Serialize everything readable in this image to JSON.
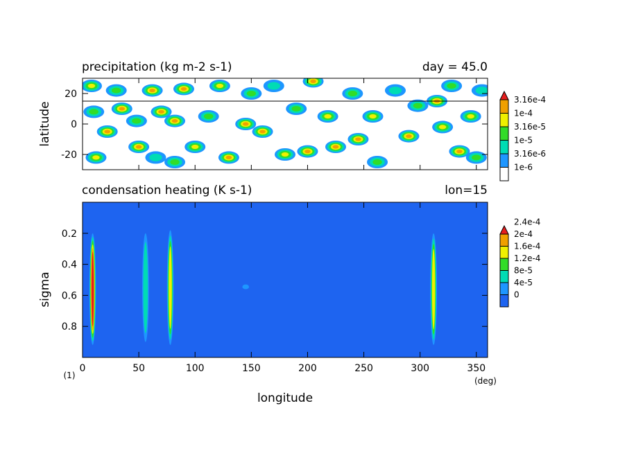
{
  "chart_data": [
    {
      "type": "heatmap",
      "title": "precipitation (kg m-2 s-1)",
      "annotation": "day = 45.0",
      "ylabel": "latitude",
      "xlim": [
        0,
        360
      ],
      "ylim": [
        -30,
        30
      ],
      "yticks": [
        "20",
        "0",
        "-20"
      ],
      "colorbar": {
        "labels": [
          "1e-6",
          "3.16e-6",
          "1e-5",
          "3.16e-5",
          "1e-4",
          "3.16e-4"
        ],
        "colors": [
          "#ffffff",
          "#1e96ff",
          "#00dcb4",
          "#32dc28",
          "#f0f000",
          "#f0a000",
          "#e61e1e"
        ]
      },
      "reference_line": {
        "latitude": 15
      },
      "blobs": [
        {
          "lon": 8,
          "lat": 25,
          "level": 4
        },
        {
          "lon": 10,
          "lat": 8,
          "level": 3
        },
        {
          "lon": 12,
          "lat": -22,
          "level": 4
        },
        {
          "lon": 22,
          "lat": -5,
          "level": 5
        },
        {
          "lon": 30,
          "lat": 22,
          "level": 3
        },
        {
          "lon": 35,
          "lat": 10,
          "level": 5
        },
        {
          "lon": 48,
          "lat": 2,
          "level": 3
        },
        {
          "lon": 50,
          "lat": -15,
          "level": 5
        },
        {
          "lon": 62,
          "lat": 22,
          "level": 5
        },
        {
          "lon": 65,
          "lat": -22,
          "level": 2
        },
        {
          "lon": 70,
          "lat": 8,
          "level": 5
        },
        {
          "lon": 82,
          "lat": 2,
          "level": 5
        },
        {
          "lon": 82,
          "lat": -25,
          "level": 3
        },
        {
          "lon": 90,
          "lat": 23,
          "level": 5
        },
        {
          "lon": 100,
          "lat": -15,
          "level": 4
        },
        {
          "lon": 112,
          "lat": 5,
          "level": 3
        },
        {
          "lon": 122,
          "lat": 25,
          "level": 4
        },
        {
          "lon": 130,
          "lat": -22,
          "level": 5
        },
        {
          "lon": 145,
          "lat": 0,
          "level": 5
        },
        {
          "lon": 150,
          "lat": 20,
          "level": 3
        },
        {
          "lon": 160,
          "lat": -5,
          "level": 5
        },
        {
          "lon": 170,
          "lat": 25,
          "level": 2
        },
        {
          "lon": 180,
          "lat": -20,
          "level": 4
        },
        {
          "lon": 190,
          "lat": 10,
          "level": 3
        },
        {
          "lon": 200,
          "lat": -18,
          "level": 5
        },
        {
          "lon": 205,
          "lat": 28,
          "level": 5
        },
        {
          "lon": 218,
          "lat": 5,
          "level": 4
        },
        {
          "lon": 225,
          "lat": -15,
          "level": 5
        },
        {
          "lon": 240,
          "lat": 20,
          "level": 3
        },
        {
          "lon": 245,
          "lat": -10,
          "level": 5
        },
        {
          "lon": 258,
          "lat": 5,
          "level": 4
        },
        {
          "lon": 262,
          "lat": -25,
          "level": 3
        },
        {
          "lon": 278,
          "lat": 22,
          "level": 2
        },
        {
          "lon": 290,
          "lat": -8,
          "level": 5
        },
        {
          "lon": 298,
          "lat": 12,
          "level": 3
        },
        {
          "lon": 315,
          "lat": 15,
          "level": 5
        },
        {
          "lon": 320,
          "lat": -2,
          "level": 4
        },
        {
          "lon": 328,
          "lat": 25,
          "level": 3
        },
        {
          "lon": 335,
          "lat": -18,
          "level": 5
        },
        {
          "lon": 345,
          "lat": 5,
          "level": 4
        },
        {
          "lon": 350,
          "lat": -22,
          "level": 3
        },
        {
          "lon": 355,
          "lat": 22,
          "level": 2
        }
      ]
    },
    {
      "type": "heatmap",
      "title": "condensation heating (K s-1)",
      "annotation": "lon=15",
      "xlabel": "longitude",
      "ylabel": "sigma",
      "xunit": "(deg)",
      "corner_label": "(1)",
      "xlim": [
        0,
        360
      ],
      "ylim": [
        0,
        1
      ],
      "xticks": [
        "0",
        "50",
        "100",
        "150",
        "200",
        "250",
        "300",
        "350"
      ],
      "yticks": [
        "0.2",
        "0.4",
        "0.6",
        "0.8"
      ],
      "background_color": "#1e64f0",
      "colorbar": {
        "labels": [
          "0",
          "4e-5",
          "8e-5",
          "1.2e-4",
          "1.6e-4",
          "2e-4",
          "2.4e-4"
        ],
        "colors": [
          "#1e64f0",
          "#1e96ff",
          "#00dcb4",
          "#32dc28",
          "#f0f000",
          "#f0a000",
          "#e61e1e"
        ]
      },
      "columns": [
        {
          "lon": 9,
          "sigma_top": 0.2,
          "sigma_bottom": 0.92,
          "peak_level": 6
        },
        {
          "lon": 56,
          "sigma_top": 0.2,
          "sigma_bottom": 0.9,
          "peak_level": 2
        },
        {
          "lon": 78,
          "sigma_top": 0.18,
          "sigma_bottom": 0.92,
          "peak_level": 4
        },
        {
          "lon": 145,
          "sigma_top": 0.53,
          "sigma_bottom": 0.56,
          "peak_level": 1
        },
        {
          "lon": 312,
          "sigma_top": 0.2,
          "sigma_bottom": 0.92,
          "peak_level": 4
        }
      ]
    }
  ]
}
